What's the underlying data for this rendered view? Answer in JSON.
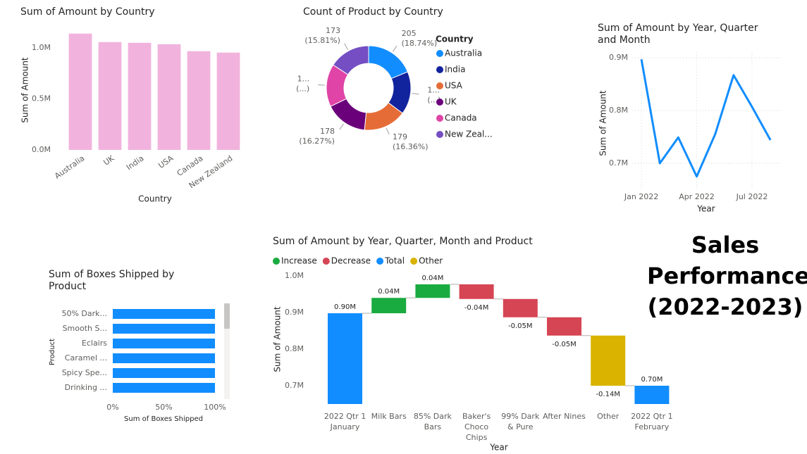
{
  "title": "Sales Performance (2022-2023)",
  "chart_data": [
    {
      "type": "bar",
      "title": "Sum of Amount by Country",
      "x_label": "Country",
      "y_label": "Sum of Amount",
      "categories": [
        "Australia",
        "UK",
        "India",
        "USA",
        "Canada",
        "New Zealand"
      ],
      "values": [
        1138000,
        1055000,
        1048000,
        1034000,
        966000,
        952000
      ],
      "color": "#f1b3dd",
      "ylim": [
        0,
        1150000
      ],
      "yticks": [
        {
          "value": 0,
          "label": "0.0M"
        },
        {
          "value": 500000,
          "label": "0.5M"
        },
        {
          "value": 1000000,
          "label": "1.0M"
        }
      ],
      "grid": false
    },
    {
      "type": "pie",
      "donut": true,
      "title": "Count of Product by Country",
      "legend_title": "Country",
      "legend": "right",
      "categories": [
        "Australia",
        "India",
        "USA",
        "UK",
        "Canada",
        "New Zeal..."
      ],
      "values": [
        205,
        180,
        179,
        178,
        179,
        173
      ],
      "value_labels": [
        [
          "205",
          "(18.74%)"
        ],
        [
          "1...",
          "(...)"
        ],
        [
          "179",
          "(16.36%)"
        ],
        [
          "178",
          "(16.27%)"
        ],
        [
          "1...",
          "(...)"
        ],
        [
          "173",
          "(15.81%)"
        ]
      ],
      "colors": [
        "#118dff",
        "#12239e",
        "#e66c37",
        "#6b007b",
        "#e044a7",
        "#744ec2"
      ]
    },
    {
      "type": "line",
      "title": "Sum of Amount by Year, Quarter and Month",
      "x_label": "Year",
      "y_label": "Sum of Amount",
      "categories": [
        "Jan 2022",
        null,
        null,
        "Apr 2022",
        null,
        null,
        "Jul 2022",
        null
      ],
      "values": [
        897000,
        700000,
        749000,
        675000,
        755000,
        867000,
        807000,
        744000
      ],
      "color": "#118dff",
      "ylim": [
        650000,
        910000
      ],
      "yticks": [
        {
          "value": 700000,
          "label": "0.7M"
        },
        {
          "value": 800000,
          "label": "0.8M"
        },
        {
          "value": 900000,
          "label": "0.9M"
        }
      ],
      "grid": true
    },
    {
      "type": "barh",
      "title": "Sum of Boxes Shipped by Product",
      "x_label": "Sum of Boxes Shipped",
      "y_label": "Product",
      "categories": [
        "50% Dark...",
        "Smooth S...",
        "Eclairs",
        "Caramel ...",
        "Spicy Spe...",
        "Drinking ..."
      ],
      "values": [
        100,
        100,
        100,
        100,
        100,
        100
      ],
      "color": "#118dff",
      "xlim": [
        0,
        100
      ],
      "xticks": [
        {
          "value": 0,
          "label": "0%"
        },
        {
          "value": 50,
          "label": "50%"
        },
        {
          "value": 100,
          "label": "100%"
        }
      ]
    },
    {
      "type": "waterfall",
      "title": "Sum of Amount by Year, Quarter, Month and Product",
      "x_label": "Year",
      "y_label": "Sum of Amount",
      "legend_items": [
        {
          "name": "Increase",
          "color": "#1aab40"
        },
        {
          "name": "Decrease",
          "color": "#d64554"
        },
        {
          "name": "Total",
          "color": "#118dff"
        },
        {
          "name": "Other",
          "color": "#d9b300"
        }
      ],
      "categories": [
        "2022 Qtr 1 January",
        "Milk Bars",
        "85% Dark Bars",
        "Baker's Choco Chips",
        "99% Dark & Pure",
        "After Nines",
        "Other",
        "2022 Qtr 1 February"
      ],
      "values": [
        898000,
        42000,
        37000,
        -40000,
        -50000,
        -50000,
        -137000,
        700000
      ],
      "value_labels": [
        "0.90M",
        "0.04M",
        "0.04M",
        "-0.04M",
        "-0.05M",
        "-0.05M",
        "-0.14M",
        "0.70M"
      ],
      "colors": [
        "#118dff",
        "#1aab40",
        "#1aab40",
        "#d64554",
        "#d64554",
        "#d64554",
        "#d9b300",
        "#118dff"
      ],
      "ylim": [
        650000,
        1000000
      ],
      "yticks": [
        {
          "value": 700000,
          "label": "0.7M"
        },
        {
          "value": 800000,
          "label": "0.8M"
        },
        {
          "value": 900000,
          "label": "0.9M"
        },
        {
          "value": 1000000,
          "label": "1.0M"
        }
      ],
      "grid": false
    }
  ]
}
